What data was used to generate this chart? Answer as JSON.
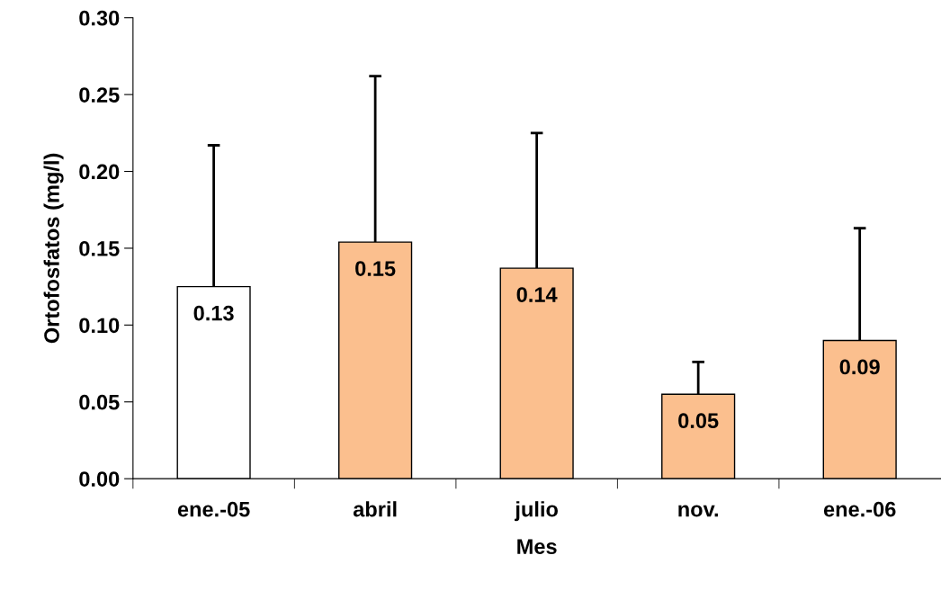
{
  "chart_data": {
    "type": "bar",
    "xlabel": "Mes",
    "ylabel": "Ortofosfatos (mg/l)",
    "categories": [
      "ene.-05",
      "abril",
      "julio",
      "nov.",
      "ene.-06"
    ],
    "values": [
      0.125,
      0.154,
      0.137,
      0.055,
      0.09
    ],
    "colors": [
      "#ffffff",
      "#fbbf8e",
      "#fbbf8e",
      "#fbbf8e",
      "#fbbf8e"
    ],
    "errors": [
      [
        0.125,
        0.217
      ],
      [
        0.154,
        0.262
      ],
      [
        0.137,
        0.225
      ],
      [
        0.055,
        0.076
      ],
      [
        0.09,
        0.163
      ]
    ],
    "value_labels": [
      "0.13",
      "0.15",
      "0.14",
      "0.05",
      "0.09"
    ],
    "ylim": [
      0,
      0.3
    ],
    "yticks": [
      {
        "value": 0,
        "label": "0.00"
      },
      {
        "value": 0.05,
        "label": "0.05"
      },
      {
        "value": 0.1,
        "label": "0.10"
      },
      {
        "value": 0.15,
        "label": "0.15"
      },
      {
        "value": 0.2,
        "label": "0.20"
      },
      {
        "value": 0.25,
        "label": "0.25"
      },
      {
        "value": 0.3,
        "label": "0.30"
      }
    ],
    "grid": false,
    "legend": false
  }
}
